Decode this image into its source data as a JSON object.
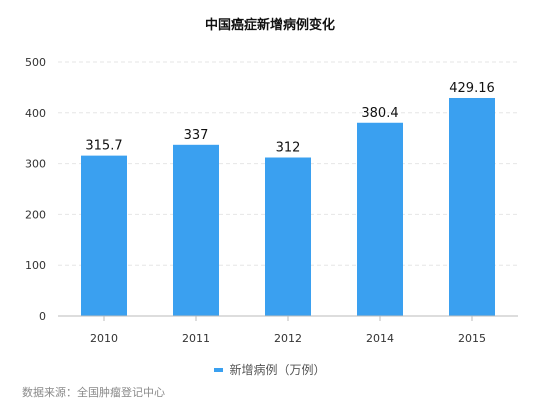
{
  "colors": {
    "bar": "#3aa0f0",
    "axis": "#bbbbbb",
    "grid": "#e6e6e6",
    "text": "#333333"
  },
  "chart_data": {
    "type": "bar",
    "title": "中国癌症新增病例变化",
    "categories": [
      "2010",
      "2011",
      "2012",
      "2014",
      "2015"
    ],
    "series": [
      {
        "name": "新增病例（万例）",
        "values": [
          315.7,
          337,
          312,
          380.4,
          429.16
        ],
        "labels": [
          "315.7",
          "337",
          "312",
          "380.4",
          "429.16"
        ]
      }
    ],
    "xlabel": "",
    "ylabel": "",
    "ylim": [
      0,
      500
    ],
    "yticks": [
      0,
      100,
      200,
      300,
      400,
      500
    ],
    "grid": true,
    "legend_position": "bottom"
  },
  "footer": {
    "source": "数据来源：全国肿瘤登记中心"
  }
}
